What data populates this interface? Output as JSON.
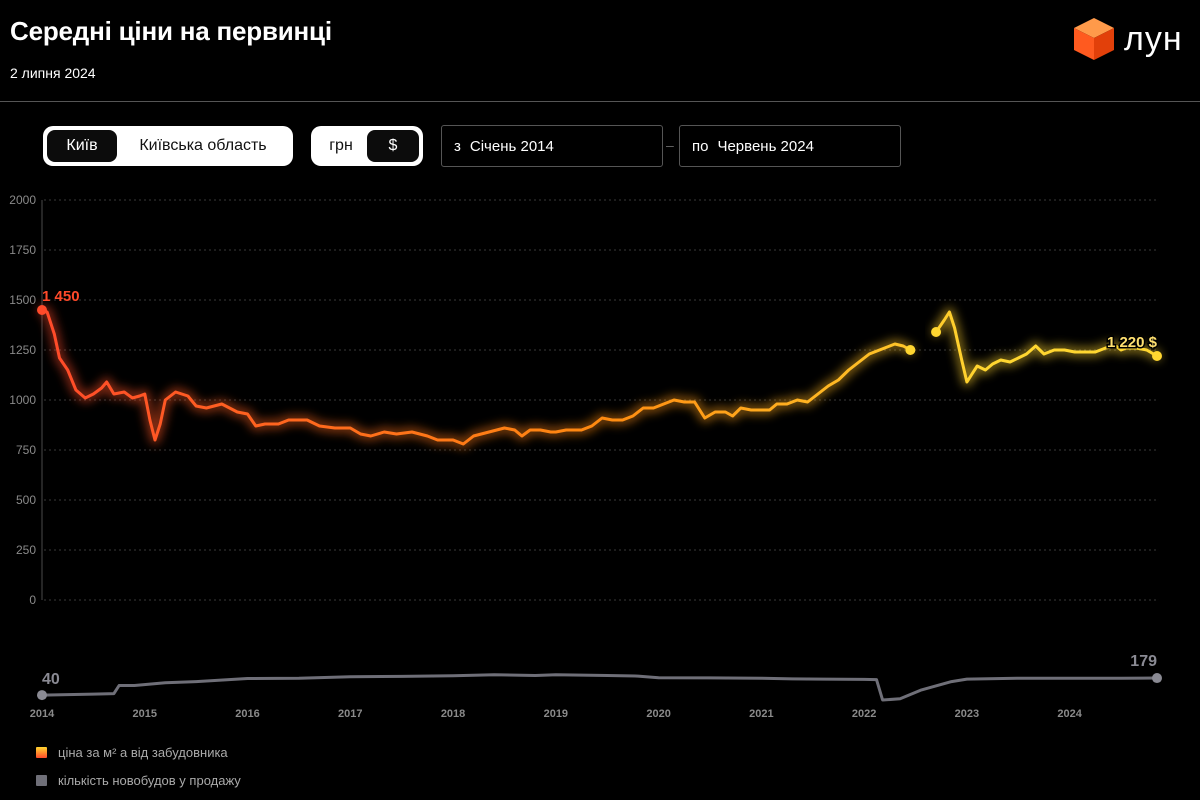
{
  "header": {
    "title": "Середні ціни на первинці",
    "date": "2 липня 2024",
    "logo_text": "лун"
  },
  "controls": {
    "region": {
      "options": [
        "Київ",
        "Київська область"
      ],
      "selected": "Київ"
    },
    "currency": {
      "options": [
        "грн",
        "$"
      ],
      "selected": "$"
    },
    "date_from": {
      "prefix": "з",
      "value": "Січень 2014"
    },
    "date_to": {
      "prefix": "по",
      "value": "Червень 2024"
    },
    "range_separator": "–"
  },
  "legend": {
    "price": "ціна за м² а від забудовника",
    "count": "кількість новобудов у продажу"
  },
  "colors": {
    "price_start": "#ff4a2a",
    "price_mid": "#ff8a10",
    "price_end": "#ffd630",
    "count_line": "#6f6f78",
    "logo": "#ff5a1f"
  },
  "chart_data": [
    {
      "type": "line",
      "title": "ціна за м² а від забудовника",
      "ylim": [
        0,
        2000
      ],
      "yticks": [
        0,
        250,
        500,
        750,
        1000,
        1250,
        1500,
        1750,
        2000
      ],
      "xticks": [
        "2014",
        "2015",
        "2016",
        "2017",
        "2018",
        "2019",
        "2020",
        "2021",
        "2022",
        "2023",
        "2024"
      ],
      "start_label": "1 450",
      "end_label": "1 220 $",
      "series": [
        {
          "name": "ціна за м² а від забудовника",
          "segments": [
            [
              [
                2014.0,
                1450
              ],
              [
                2014.05,
                1440
              ],
              [
                2014.12,
                1330
              ],
              [
                2014.17,
                1210
              ],
              [
                2014.25,
                1150
              ],
              [
                2014.33,
                1050
              ],
              [
                2014.42,
                1010
              ],
              [
                2014.5,
                1030
              ],
              [
                2014.58,
                1060
              ],
              [
                2014.63,
                1090
              ],
              [
                2014.7,
                1030
              ],
              [
                2014.8,
                1040
              ],
              [
                2014.88,
                1010
              ],
              [
                2014.95,
                1020
              ],
              [
                2015.0,
                1030
              ],
              [
                2015.05,
                900
              ],
              [
                2015.1,
                800
              ],
              [
                2015.15,
                880
              ],
              [
                2015.2,
                1000
              ],
              [
                2015.3,
                1040
              ],
              [
                2015.42,
                1020
              ],
              [
                2015.5,
                970
              ],
              [
                2015.6,
                960
              ],
              [
                2015.75,
                980
              ],
              [
                2015.9,
                940
              ],
              [
                2016.0,
                930
              ],
              [
                2016.08,
                870
              ],
              [
                2016.17,
                880
              ],
              [
                2016.3,
                880
              ],
              [
                2016.4,
                900
              ],
              [
                2016.58,
                900
              ],
              [
                2016.7,
                870
              ],
              [
                2016.85,
                860
              ],
              [
                2017.0,
                860
              ],
              [
                2017.1,
                830
              ],
              [
                2017.2,
                820
              ],
              [
                2017.33,
                840
              ],
              [
                2017.45,
                830
              ],
              [
                2017.6,
                840
              ],
              [
                2017.75,
                820
              ],
              [
                2017.85,
                800
              ],
              [
                2018.0,
                800
              ],
              [
                2018.1,
                780
              ],
              [
                2018.2,
                820
              ],
              [
                2018.35,
                840
              ],
              [
                2018.5,
                860
              ],
              [
                2018.6,
                850
              ],
              [
                2018.67,
                820
              ],
              [
                2018.75,
                850
              ],
              [
                2018.85,
                850
              ],
              [
                2018.95,
                840
              ],
              [
                2019.0,
                840
              ],
              [
                2019.1,
                850
              ],
              [
                2019.25,
                850
              ],
              [
                2019.35,
                870
              ],
              [
                2019.45,
                910
              ],
              [
                2019.55,
                900
              ],
              [
                2019.65,
                900
              ],
              [
                2019.75,
                920
              ],
              [
                2019.85,
                960
              ],
              [
                2019.95,
                960
              ],
              [
                2020.05,
                980
              ],
              [
                2020.15,
                1000
              ],
              [
                2020.25,
                990
              ],
              [
                2020.35,
                990
              ],
              [
                2020.45,
                910
              ],
              [
                2020.55,
                940
              ],
              [
                2020.65,
                940
              ],
              [
                2020.72,
                920
              ],
              [
                2020.8,
                960
              ],
              [
                2020.9,
                950
              ],
              [
                2021.0,
                950
              ],
              [
                2021.08,
                950
              ],
              [
                2021.15,
                980
              ],
              [
                2021.25,
                980
              ],
              [
                2021.35,
                1000
              ],
              [
                2021.45,
                990
              ],
              [
                2021.55,
                1030
              ],
              [
                2021.65,
                1070
              ],
              [
                2021.75,
                1100
              ],
              [
                2021.85,
                1150
              ],
              [
                2021.95,
                1190
              ],
              [
                2022.05,
                1230
              ],
              [
                2022.15,
                1250
              ],
              [
                2022.25,
                1270
              ],
              [
                2022.3,
                1280
              ],
              [
                2022.38,
                1270
              ],
              [
                2022.45,
                1250
              ]
            ],
            [
              [
                2022.7,
                1340
              ],
              [
                2022.78,
                1400
              ],
              [
                2022.83,
                1440
              ],
              [
                2022.88,
                1360
              ],
              [
                2022.95,
                1200
              ],
              [
                2023.0,
                1090
              ],
              [
                2023.05,
                1130
              ],
              [
                2023.1,
                1170
              ],
              [
                2023.18,
                1150
              ],
              [
                2023.25,
                1180
              ],
              [
                2023.33,
                1200
              ],
              [
                2023.42,
                1190
              ],
              [
                2023.5,
                1210
              ],
              [
                2023.58,
                1230
              ],
              [
                2023.67,
                1270
              ],
              [
                2023.75,
                1230
              ],
              [
                2023.85,
                1250
              ],
              [
                2023.95,
                1250
              ],
              [
                2024.05,
                1240
              ],
              [
                2024.15,
                1240
              ],
              [
                2024.25,
                1240
              ],
              [
                2024.35,
                1260
              ],
              [
                2024.45,
                1270
              ],
              [
                2024.5,
                1250
              ],
              [
                2024.55,
                1260
              ],
              [
                2024.65,
                1260
              ],
              [
                2024.75,
                1250
              ],
              [
                2024.85,
                1220
              ]
            ]
          ]
        }
      ]
    },
    {
      "type": "line",
      "title": "кількість новобудов у продажу",
      "start_label": "40",
      "end_label": "179",
      "series": [
        {
          "name": "кількість новобудов у продажу",
          "points": [
            [
              2014.0,
              40
            ],
            [
              2014.5,
              48
            ],
            [
              2014.7,
              52
            ],
            [
              2014.75,
              118
            ],
            [
              2014.9,
              118
            ],
            [
              2015.2,
              140
            ],
            [
              2015.5,
              150
            ],
            [
              2015.8,
              165
            ],
            [
              2016.0,
              175
            ],
            [
              2016.5,
              178
            ],
            [
              2017.0,
              190
            ],
            [
              2017.5,
              192
            ],
            [
              2018.0,
              198
            ],
            [
              2018.4,
              205
            ],
            [
              2018.8,
              200
            ],
            [
              2019.0,
              205
            ],
            [
              2019.5,
              200
            ],
            [
              2019.8,
              195
            ],
            [
              2020.0,
              182
            ],
            [
              2020.5,
              180
            ],
            [
              2021.0,
              178
            ],
            [
              2021.3,
              172
            ],
            [
              2021.6,
              170
            ],
            [
              2022.0,
              168
            ],
            [
              2022.12,
              166
            ],
            [
              2022.18,
              0
            ],
            [
              2022.35,
              10
            ],
            [
              2022.55,
              80
            ],
            [
              2022.85,
              150
            ],
            [
              2023.0,
              170
            ],
            [
              2023.5,
              178
            ],
            [
              2024.0,
              178
            ],
            [
              2024.5,
              177
            ],
            [
              2024.85,
              179
            ]
          ]
        }
      ]
    }
  ]
}
